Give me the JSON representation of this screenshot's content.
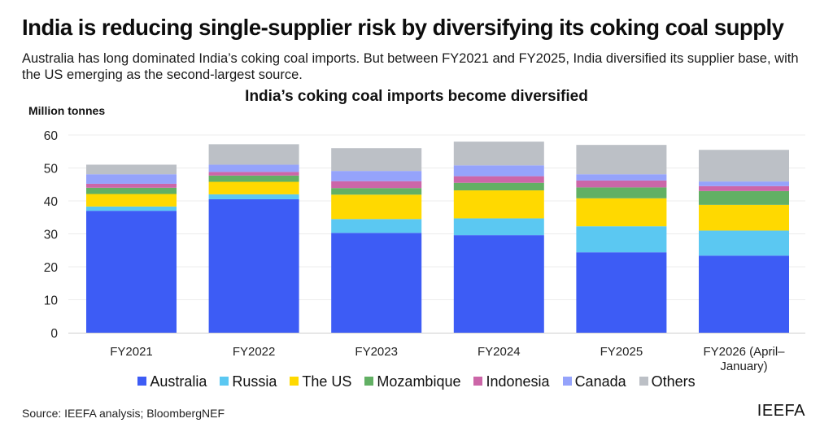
{
  "headline": "India is reducing single-supplier risk by diversifying its coking coal supply",
  "subtitle": "Australia has long dominated India’s coking coal imports. But between FY2021 and FY2025, India diversified its supplier base, with the US emerging as the second-largest source.",
  "source": "Source: IEEFA analysis; BloombergNEF",
  "brand": "IEEFA",
  "chart_data": {
    "type": "bar",
    "stacked": true,
    "title": "India’s coking coal imports become diversified",
    "xlabel": "",
    "ylabel": "Million tonnes",
    "ylim": [
      0,
      60
    ],
    "yticks": [
      0,
      10,
      20,
      30,
      40,
      50,
      60
    ],
    "grid": true,
    "legend_position": "bottom",
    "categories": [
      "FY2021",
      "FY2022",
      "FY2023",
      "FY2024",
      "FY2025",
      "FY2026 (April–January)"
    ],
    "category_lines": [
      [
        "FY2021"
      ],
      [
        "FY2022"
      ],
      [
        "FY2023"
      ],
      [
        "FY2024"
      ],
      [
        "FY2025"
      ],
      [
        "FY2026 (April–",
        "January)"
      ]
    ],
    "series": [
      {
        "name": "Australia",
        "color": "#3d5cf5",
        "values": [
          37.0,
          40.5,
          30.3,
          29.6,
          24.4,
          23.4
        ]
      },
      {
        "name": "Russia",
        "color": "#5bc8f2",
        "values": [
          1.3,
          1.5,
          4.2,
          5.1,
          7.9,
          7.6
        ]
      },
      {
        "name": "The US",
        "color": "#ffd900",
        "values": [
          3.8,
          3.8,
          7.4,
          8.5,
          8.5,
          7.8
        ]
      },
      {
        "name": "Mozambique",
        "color": "#62b064",
        "values": [
          1.9,
          1.9,
          2.0,
          2.3,
          3.3,
          4.2
        ]
      },
      {
        "name": "Indonesia",
        "color": "#cc66a8",
        "values": [
          1.2,
          1.1,
          2.1,
          2.0,
          2.1,
          1.5
        ]
      },
      {
        "name": "Canada",
        "color": "#95a3fb",
        "values": [
          2.9,
          2.2,
          3.1,
          3.3,
          1.9,
          1.4
        ]
      },
      {
        "name": "Others",
        "color": "#bcc0c6",
        "values": [
          2.9,
          6.2,
          6.9,
          7.2,
          8.9,
          9.6
        ]
      }
    ]
  }
}
